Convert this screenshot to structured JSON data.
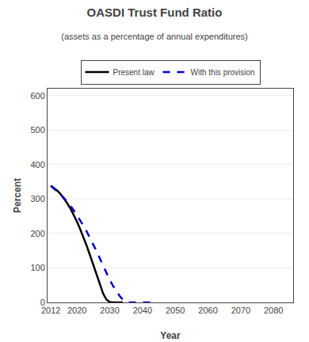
{
  "chart_data": {
    "type": "line",
    "title": "OASDI Trust Fund Ratio",
    "subtitle": "(assets as a percentage of annual expenditures)",
    "xlabel": "Year",
    "ylabel": "Percent",
    "xlim": [
      2011,
      2086
    ],
    "ylim": [
      0,
      620
    ],
    "xticks": [
      2012,
      2020,
      2030,
      2040,
      2050,
      2060,
      2070,
      2080
    ],
    "yticks": [
      0,
      100,
      200,
      300,
      400,
      500,
      600
    ],
    "grid": "y",
    "legend": "top",
    "series": [
      {
        "name": "Present law",
        "color": "#000000",
        "line_style": "solid",
        "x": [
          2012,
          2013,
          2014,
          2015,
          2016,
          2017,
          2018,
          2019,
          2020,
          2021,
          2022,
          2023,
          2024,
          2025,
          2026,
          2027,
          2028,
          2029,
          2030,
          2031,
          2032,
          2033,
          2034
        ],
        "values": [
          338,
          332,
          324,
          314,
          302,
          288,
          272,
          254,
          234,
          212,
          189,
          163,
          136,
          107,
          78,
          50,
          25,
          8,
          1,
          0,
          0,
          0,
          0
        ]
      },
      {
        "name": "With this provision",
        "color": "#0000cc",
        "line_style": "dashed",
        "x": [
          2012,
          2013,
          2014,
          2015,
          2016,
          2017,
          2018,
          2019,
          2020,
          2021,
          2022,
          2023,
          2024,
          2025,
          2026,
          2027,
          2028,
          2029,
          2030,
          2031,
          2032,
          2033,
          2034,
          2035,
          2036,
          2037,
          2038,
          2039,
          2040,
          2041,
          2042,
          2043
        ],
        "values": [
          338,
          330,
          322,
          313,
          303,
          292,
          280,
          267,
          253,
          238,
          222,
          205,
          187,
          168,
          148,
          127,
          106,
          85,
          65,
          48,
          33,
          19,
          8,
          1,
          0,
          0,
          0,
          0,
          0,
          0,
          0,
          0
        ]
      }
    ]
  }
}
